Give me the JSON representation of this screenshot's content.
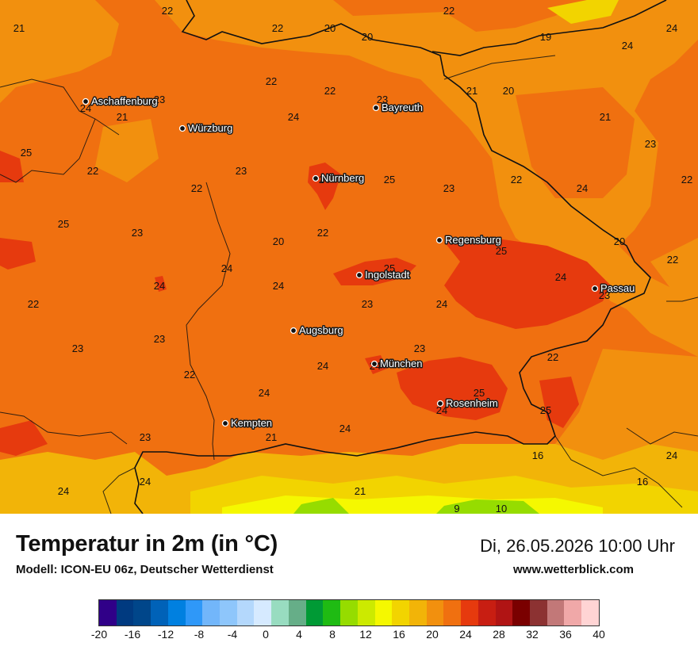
{
  "header": {
    "title": "Temperatur in 2m (in °C)",
    "model": "Modell: ICON-EU 06z, Deutscher Wetterdienst",
    "datetime": "Di, 26.05.2026 10:00 Uhr",
    "site": "www.wetterblick.com"
  },
  "cities": [
    {
      "name": "Aschaffenburg"
    },
    {
      "name": "Würzburg"
    },
    {
      "name": "Bayreuth"
    },
    {
      "name": "Nürnberg"
    },
    {
      "name": "Regensburg"
    },
    {
      "name": "Ingolstadt"
    },
    {
      "name": "Passau"
    },
    {
      "name": "Augsburg"
    },
    {
      "name": "München"
    },
    {
      "name": "Rosenheim"
    },
    {
      "name": "Kempten"
    }
  ],
  "temperatures": [
    "22",
    "22",
    "21",
    "22",
    "20",
    "20",
    "19",
    "24",
    "24",
    "22",
    "22",
    "23",
    "21",
    "20",
    "24",
    "24",
    "23",
    "25",
    "21",
    "22",
    "22",
    "23",
    "24",
    "21",
    "23",
    "25",
    "23",
    "22",
    "24",
    "22",
    "25",
    "23",
    "22",
    "20",
    "20",
    "22",
    "24",
    "24",
    "25",
    "25",
    "24",
    "23",
    "24",
    "23",
    "24",
    "22",
    "23",
    "23",
    "23",
    "22",
    "24",
    "24",
    "25",
    "24",
    "25",
    "22",
    "24",
    "23",
    "24",
    "16",
    "21",
    "24",
    "24",
    "16",
    "21",
    "9",
    "10",
    "24"
  ],
  "legend": {
    "colors": [
      "#300088",
      "#003a80",
      "#00468a",
      "#0062b8",
      "#0080e0",
      "#2f98f8",
      "#72b6fa",
      "#8ec6fb",
      "#b4d8fc",
      "#d6eaff",
      "#98dcc0",
      "#66ae88",
      "#009a35",
      "#1fbb13",
      "#96dc00",
      "#ccea00",
      "#f5f800",
      "#f2d400",
      "#f2b408",
      "#f2900e",
      "#f07010",
      "#e63a0e",
      "#c81e12",
      "#b01414",
      "#7a0000",
      "#8c3232",
      "#c27878",
      "#f0a8a8",
      "#ffd4d4"
    ],
    "ticks": [
      "-20",
      "-16",
      "-12",
      "-8",
      "-4",
      "0",
      "4",
      "8",
      "12",
      "16",
      "20",
      "24",
      "28",
      "32",
      "36",
      "40"
    ]
  }
}
